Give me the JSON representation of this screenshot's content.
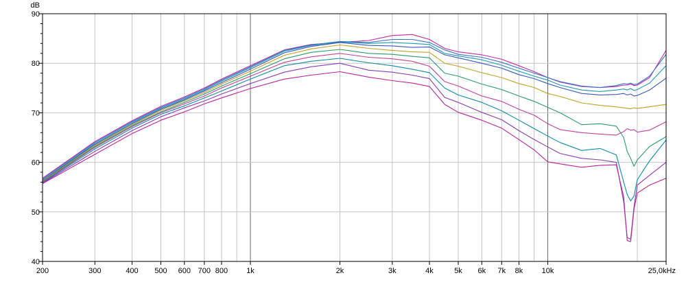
{
  "chart_data": {
    "type": "line",
    "title": "",
    "xlabel": "",
    "ylabel": "",
    "y_unit_label": "dB",
    "x_scale": "log",
    "xlim": [
      200,
      25000
    ],
    "ylim": [
      40,
      90
    ],
    "grid": true,
    "legend": "none",
    "x_tick_labels": [
      {
        "v": 200,
        "t": "200"
      },
      {
        "v": 300,
        "t": "300"
      },
      {
        "v": 400,
        "t": "400"
      },
      {
        "v": 500,
        "t": "500"
      },
      {
        "v": 600,
        "t": "600"
      },
      {
        "v": 700,
        "t": "700"
      },
      {
        "v": 800,
        "t": "800"
      },
      {
        "v": 1000,
        "t": "1k"
      },
      {
        "v": 2000,
        "t": "2k"
      },
      {
        "v": 3000,
        "t": "3k"
      },
      {
        "v": 4000,
        "t": "4k"
      },
      {
        "v": 5000,
        "t": "5k"
      },
      {
        "v": 6000,
        "t": "6k"
      },
      {
        "v": 7000,
        "t": "7k"
      },
      {
        "v": 8000,
        "t": "8k"
      },
      {
        "v": 10000,
        "t": "10k"
      },
      {
        "v": 25000,
        "t": "25,0kHz"
      }
    ],
    "x_gridlines": [
      200,
      300,
      400,
      500,
      600,
      700,
      800,
      900,
      1000,
      2000,
      3000,
      4000,
      5000,
      6000,
      7000,
      8000,
      9000,
      10000,
      20000
    ],
    "x_major_gridlines": [
      1000,
      10000
    ],
    "y_ticks": [
      40,
      50,
      60,
      70,
      80,
      90
    ],
    "y_minor_ticks": [
      42,
      44,
      46,
      48,
      52,
      54,
      56,
      58,
      62,
      64,
      66,
      68,
      72,
      74,
      76,
      78,
      82,
      84,
      86,
      88
    ],
    "x": [
      200,
      300,
      400,
      500,
      600,
      700,
      800,
      1000,
      1300,
      1600,
      2000,
      2500,
      3000,
      3500,
      4000,
      4500,
      5000,
      6000,
      7000,
      8000,
      9000,
      10000,
      11000,
      13000,
      15000,
      17000,
      18000,
      18500,
      19000,
      19500,
      20000,
      22000,
      25000
    ],
    "series": [
      {
        "color": "#c02a9c",
        "values": [
          56.8,
          64.2,
          68.4,
          71.3,
          73.2,
          75.0,
          76.8,
          79.5,
          82.7,
          83.8,
          84.2,
          84.6,
          85.6,
          85.8,
          84.8,
          83.0,
          82.3,
          81.7,
          80.8,
          79.5,
          78.3,
          77.1,
          76.2,
          75.3,
          75.1,
          75.3,
          75.6,
          75.6,
          75.8,
          75.5,
          75.6,
          77.1,
          82.6
        ]
      },
      {
        "color": "#3a72c8",
        "values": [
          56.6,
          64.0,
          68.2,
          71.1,
          73.0,
          74.8,
          76.6,
          79.3,
          82.6,
          83.7,
          84.4,
          84.2,
          84.8,
          84.8,
          84.2,
          82.7,
          81.8,
          81.2,
          80.2,
          79.0,
          78.0,
          77.1,
          76.3,
          75.4,
          75.1,
          75.5,
          75.9,
          75.8,
          76.0,
          75.7,
          75.8,
          77.4,
          81.8
        ]
      },
      {
        "color": "#1e9ab0",
        "values": [
          56.4,
          63.8,
          68.0,
          70.9,
          72.8,
          74.6,
          76.4,
          79.1,
          82.4,
          83.6,
          84.3,
          84.0,
          84.2,
          84.0,
          83.8,
          82.0,
          81.5,
          80.7,
          79.6,
          78.4,
          77.4,
          76.6,
          75.6,
          74.6,
          74.3,
          74.6,
          74.8,
          74.6,
          74.9,
          74.5,
          74.7,
          76.0,
          79.5
        ]
      },
      {
        "color": "#3c57b8",
        "values": [
          56.3,
          63.6,
          67.8,
          70.7,
          72.6,
          74.4,
          76.1,
          78.8,
          82.1,
          83.4,
          84.2,
          83.6,
          83.5,
          83.2,
          83.3,
          81.7,
          81.1,
          80.0,
          79.0,
          77.7,
          76.9,
          75.9,
          75.1,
          73.9,
          73.6,
          73.7,
          73.9,
          73.6,
          73.8,
          73.4,
          73.5,
          74.6,
          77.0
        ]
      },
      {
        "color": "#c0a024",
        "values": [
          56.2,
          63.4,
          67.6,
          70.5,
          72.4,
          74.1,
          75.8,
          78.4,
          81.6,
          82.9,
          83.7,
          83.0,
          82.6,
          82.3,
          82.2,
          80.0,
          79.4,
          78.1,
          77.1,
          75.9,
          75.1,
          73.9,
          73.3,
          72.0,
          71.5,
          71.2,
          71.0,
          70.9,
          70.8,
          71.0,
          70.9,
          71.2,
          71.7
        ]
      },
      {
        "color": "#2a9b6a",
        "values": [
          56.1,
          63.2,
          67.4,
          70.2,
          72.1,
          73.8,
          75.4,
          77.9,
          80.9,
          82.2,
          82.8,
          82.0,
          81.8,
          81.4,
          81.1,
          78.0,
          77.4,
          75.8,
          74.7,
          73.4,
          72.3,
          71.1,
          70.0,
          67.6,
          67.8,
          67.3,
          65.0,
          62.2,
          60.8,
          59.2,
          60.5,
          63.2,
          65.2
        ]
      },
      {
        "color": "#c0409a",
        "values": [
          56.0,
          63.0,
          67.2,
          70.0,
          71.8,
          73.4,
          75.0,
          77.4,
          80.2,
          81.3,
          82.0,
          81.2,
          80.9,
          80.4,
          79.4,
          76.3,
          75.4,
          73.4,
          72.3,
          70.7,
          69.5,
          67.8,
          66.6,
          66.0,
          65.7,
          65.5,
          66.2,
          66.8,
          66.5,
          66.6,
          66.1,
          66.5,
          68.2
        ]
      },
      {
        "color": "#0f8aa6",
        "values": [
          55.9,
          62.7,
          66.9,
          69.7,
          71.4,
          73.0,
          74.4,
          76.8,
          79.5,
          80.4,
          81.0,
          80.1,
          79.5,
          78.8,
          78.1,
          75.0,
          73.6,
          72.1,
          70.4,
          68.5,
          66.8,
          65.3,
          64.0,
          62.4,
          62.8,
          61.5,
          56.0,
          53.5,
          52.2,
          53.2,
          56.5,
          60.3,
          64.5
        ]
      },
      {
        "color": "#8a3ab4",
        "values": [
          55.8,
          62.2,
          66.4,
          69.2,
          71.0,
          72.4,
          73.8,
          75.9,
          78.2,
          79.3,
          80.0,
          78.6,
          78.2,
          77.6,
          76.9,
          73.1,
          72.1,
          70.1,
          68.6,
          66.4,
          64.6,
          63.1,
          61.8,
          60.8,
          60.5,
          60.0,
          52.0,
          44.8,
          44.5,
          51.0,
          55.4,
          57.4,
          60.0
        ]
      },
      {
        "color": "#b8249a",
        "values": [
          55.7,
          61.6,
          65.8,
          68.5,
          70.2,
          71.8,
          73.0,
          74.9,
          76.8,
          77.6,
          78.3,
          77.2,
          76.5,
          76.0,
          75.3,
          71.7,
          70.1,
          68.5,
          66.9,
          64.6,
          62.5,
          60.1,
          59.7,
          59.0,
          59.4,
          59.5,
          53.0,
          44.2,
          44.0,
          50.5,
          53.8,
          55.4,
          56.8
        ]
      }
    ]
  }
}
